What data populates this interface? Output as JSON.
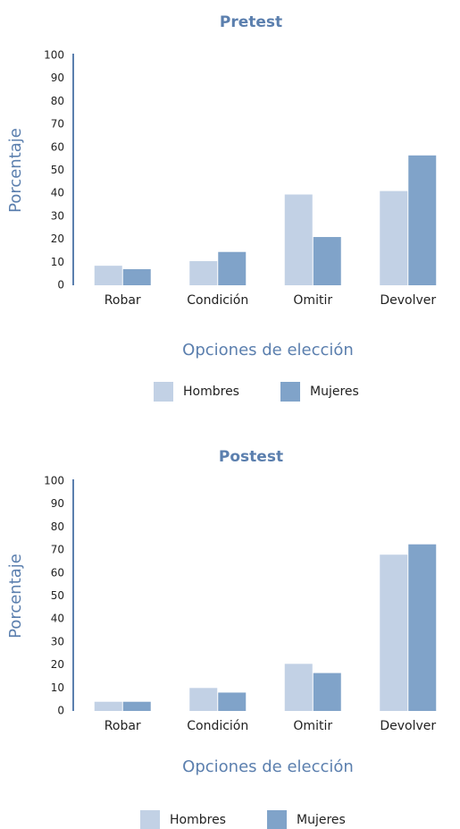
{
  "chart_data": [
    {
      "type": "bar",
      "title": "Pretest",
      "x_label": "Opciones de elección",
      "y_label": "Porcentaje",
      "categories": [
        "Robar",
        "Condición",
        "Omitir",
        "Devolver"
      ],
      "series": [
        {
          "name": "Hombres",
          "color": "#c2d1e5",
          "values": [
            8.5,
            10.5,
            39.5,
            41
          ]
        },
        {
          "name": "Mujeres",
          "color": "#80a3c9",
          "values": [
            7,
            14.5,
            21,
            56.5
          ]
        }
      ],
      "ylim": [
        0,
        100
      ],
      "yticks": [
        0,
        10,
        20,
        30,
        40,
        50,
        60,
        70,
        80,
        90,
        100
      ]
    },
    {
      "type": "bar",
      "title": "Postest",
      "x_label": "Opciones de elección",
      "y_label": "Porcentaje",
      "categories": [
        "Robar",
        "Condición",
        "Omitir",
        "Devolver"
      ],
      "series": [
        {
          "name": "Hombres",
          "color": "#c2d1e5",
          "values": [
            4,
            10,
            20.5,
            68
          ]
        },
        {
          "name": "Mujeres",
          "color": "#80a3c9",
          "values": [
            4,
            8,
            16.5,
            72.5
          ]
        }
      ],
      "ylim": [
        0,
        100
      ],
      "yticks": [
        0,
        10,
        20,
        30,
        40,
        50,
        60,
        70,
        80,
        90,
        100
      ]
    }
  ]
}
